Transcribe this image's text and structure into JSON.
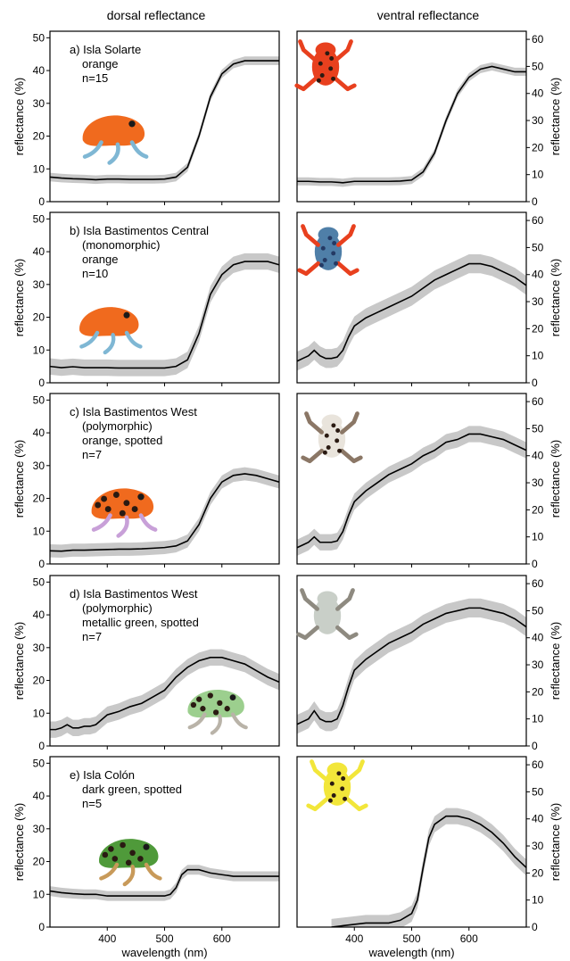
{
  "figure": {
    "column_titles": [
      "dorsal reflectance",
      "ventral reflectance"
    ]
  },
  "colors": {
    "band": "#c8c8c8",
    "line": "#000000",
    "frame": "#000000",
    "frog_orange": "#f06a1e",
    "frog_red": "#e8401e",
    "frog_spot": "#2a1a12",
    "frog_blue": "#4f7fa8",
    "frog_white": "#e9e4dc",
    "frog_green": "#9ccf8e",
    "frog_darkgreen": "#4f9a3a",
    "frog_yellow": "#f2e63a"
  },
  "chart_data": [
    {
      "type": "line",
      "panel": "a",
      "side": "dorsal",
      "text_lines": [
        "a) Isla Solarte",
        "orange",
        "n=15"
      ],
      "xlabel": "",
      "ylabel": "reflectance (%)",
      "xlim": [
        300,
        700
      ],
      "ylim": [
        0,
        52
      ],
      "yticks": [
        0,
        10,
        20,
        30,
        40,
        50
      ],
      "xticks": [
        400,
        500,
        600
      ],
      "show_xticklabels": false,
      "band": 1.3,
      "x": [
        300,
        320,
        340,
        360,
        380,
        400,
        420,
        440,
        460,
        480,
        500,
        520,
        540,
        560,
        580,
        600,
        620,
        640,
        660,
        680,
        700
      ],
      "y": [
        7.5,
        7.2,
        7.0,
        6.9,
        6.7,
        6.9,
        6.9,
        6.8,
        6.8,
        6.8,
        6.9,
        7.5,
        10.5,
        20,
        32,
        39,
        42,
        43,
        43,
        43,
        43
      ],
      "icon": "frog-orange-icon"
    },
    {
      "type": "line",
      "panel": "a",
      "side": "ventral",
      "xlabel": "",
      "ylabel": "reflectance (%)",
      "xlim": [
        300,
        700
      ],
      "ylim": [
        0,
        63
      ],
      "yticks": [
        0,
        10,
        20,
        30,
        40,
        50,
        60
      ],
      "xticks": [
        400,
        500,
        600
      ],
      "show_xticklabels": false,
      "band": 1.5,
      "x": [
        300,
        320,
        340,
        360,
        380,
        400,
        420,
        440,
        460,
        480,
        500,
        520,
        540,
        560,
        580,
        600,
        620,
        640,
        660,
        680,
        700
      ],
      "y": [
        7.5,
        7.5,
        7.3,
        7.3,
        7.0,
        7.5,
        7.5,
        7.5,
        7.5,
        7.6,
        8,
        11,
        18,
        30,
        40,
        46,
        49,
        50,
        49,
        48,
        48
      ],
      "icon": "frog-red-ventral-icon"
    },
    {
      "type": "line",
      "panel": "b",
      "side": "dorsal",
      "text_lines": [
        "b) Isla Bastimentos Central",
        "(monomorphic)",
        "orange",
        "n=10"
      ],
      "xlabel": "",
      "ylabel": "reflectance (%)",
      "xlim": [
        300,
        700
      ],
      "ylim": [
        0,
        52
      ],
      "yticks": [
        0,
        10,
        20,
        30,
        40,
        50
      ],
      "xticks": [
        400,
        500,
        600
      ],
      "show_xticklabels": false,
      "band": 2.5,
      "x": [
        300,
        320,
        340,
        360,
        380,
        400,
        420,
        440,
        460,
        480,
        500,
        520,
        540,
        560,
        580,
        600,
        620,
        640,
        660,
        680,
        700
      ],
      "y": [
        5.0,
        4.6,
        4.9,
        4.6,
        4.6,
        4.6,
        4.5,
        4.5,
        4.5,
        4.5,
        4.5,
        5.0,
        7.0,
        15,
        27,
        33,
        36,
        37,
        37,
        37,
        36
      ],
      "icon": "frog-orange-icon"
    },
    {
      "type": "line",
      "panel": "b",
      "side": "ventral",
      "xlabel": "",
      "ylabel": "reflectance (%)",
      "xlim": [
        300,
        700
      ],
      "ylim": [
        0,
        63
      ],
      "yticks": [
        0,
        10,
        20,
        30,
        40,
        50,
        60
      ],
      "xticks": [
        400,
        500,
        600
      ],
      "show_xticklabels": false,
      "band": 3.5,
      "x": [
        300,
        310,
        320,
        330,
        340,
        350,
        360,
        370,
        380,
        390,
        400,
        420,
        440,
        460,
        480,
        500,
        520,
        540,
        560,
        580,
        600,
        620,
        640,
        660,
        680,
        700
      ],
      "y": [
        8,
        9,
        10,
        12,
        10,
        9,
        9,
        9.5,
        12,
        17,
        21,
        24,
        26,
        28,
        30,
        32,
        35,
        38,
        40,
        42,
        44,
        44,
        43,
        41,
        39,
        36
      ],
      "icon": "frog-blue-ventral-icon"
    },
    {
      "type": "line",
      "panel": "c",
      "side": "dorsal",
      "text_lines": [
        "c) Isla Bastimentos West",
        "(polymorphic)",
        "orange, spotted",
        "n=7"
      ],
      "xlabel": "",
      "ylabel": "reflectance (%)",
      "xlim": [
        300,
        700
      ],
      "ylim": [
        0,
        52
      ],
      "yticks": [
        0,
        10,
        20,
        30,
        40,
        50
      ],
      "xticks": [
        400,
        500,
        600
      ],
      "show_xticklabels": false,
      "band": 2.0,
      "x": [
        300,
        320,
        340,
        360,
        380,
        400,
        420,
        440,
        460,
        480,
        500,
        520,
        540,
        560,
        580,
        600,
        620,
        640,
        660,
        680,
        700
      ],
      "y": [
        4.0,
        3.9,
        4.2,
        4.2,
        4.3,
        4.4,
        4.5,
        4.5,
        4.6,
        4.8,
        5.0,
        5.5,
        7.0,
        12,
        20,
        25,
        27,
        27.5,
        27,
        26,
        25
      ],
      "icon": "frog-orange-spotted-icon"
    },
    {
      "type": "line",
      "panel": "c",
      "side": "ventral",
      "xlabel": "",
      "ylabel": "reflectance (%)",
      "xlim": [
        300,
        700
      ],
      "ylim": [
        0,
        63
      ],
      "yticks": [
        0,
        10,
        20,
        30,
        40,
        50,
        60
      ],
      "xticks": [
        400,
        500,
        600
      ],
      "show_xticklabels": false,
      "band": 3.0,
      "x": [
        300,
        310,
        320,
        330,
        340,
        350,
        360,
        370,
        380,
        390,
        400,
        420,
        440,
        460,
        480,
        500,
        520,
        540,
        560,
        580,
        600,
        620,
        640,
        660,
        680,
        700
      ],
      "y": [
        6,
        7,
        8,
        10,
        8,
        8,
        8,
        8.5,
        12,
        18,
        23,
        27,
        30,
        33,
        35,
        37,
        40,
        42,
        45,
        46,
        48,
        48,
        47,
        46,
        44,
        42
      ],
      "icon": "frog-white-ventral-icon"
    },
    {
      "type": "line",
      "panel": "d",
      "side": "dorsal",
      "text_lines": [
        "d) Isla Bastimentos West",
        "(polymorphic)",
        "metallic green, spotted",
        "n=7"
      ],
      "xlabel": "",
      "ylabel": "reflectance (%)",
      "xlim": [
        300,
        700
      ],
      "ylim": [
        0,
        52
      ],
      "yticks": [
        0,
        10,
        20,
        30,
        40,
        50
      ],
      "xticks": [
        400,
        500,
        600
      ],
      "show_xticklabels": false,
      "band": 2.5,
      "x": [
        300,
        310,
        320,
        330,
        340,
        350,
        360,
        370,
        380,
        390,
        400,
        420,
        440,
        460,
        480,
        500,
        520,
        540,
        560,
        580,
        600,
        620,
        640,
        660,
        680,
        700
      ],
      "y": [
        5,
        5,
        5.5,
        6.5,
        5.5,
        5.5,
        6,
        6,
        6.5,
        8,
        9.5,
        10.5,
        12,
        13,
        15,
        17,
        21,
        24,
        26,
        27,
        27,
        26,
        25,
        23,
        21,
        19.5
      ],
      "icon": "frog-green-spotted-icon"
    },
    {
      "type": "line",
      "panel": "d",
      "side": "ventral",
      "xlabel": "",
      "ylabel": "reflectance (%)",
      "xlim": [
        300,
        700
      ],
      "ylim": [
        0,
        63
      ],
      "yticks": [
        0,
        10,
        20,
        30,
        40,
        50,
        60
      ],
      "xticks": [
        400,
        500,
        600
      ],
      "show_xticklabels": false,
      "band": 3.5,
      "x": [
        300,
        310,
        320,
        330,
        340,
        350,
        360,
        370,
        380,
        390,
        400,
        420,
        440,
        460,
        480,
        500,
        520,
        540,
        560,
        580,
        600,
        620,
        640,
        660,
        680,
        700
      ],
      "y": [
        8,
        9,
        10,
        13,
        10,
        9,
        9,
        10,
        15,
        22,
        28,
        32,
        35,
        38,
        40,
        42,
        45,
        47,
        49,
        50,
        51,
        51,
        50,
        49,
        47,
        44
      ],
      "icon": "frog-grey-ventral-icon"
    },
    {
      "type": "line",
      "panel": "e",
      "side": "dorsal",
      "text_lines": [
        "e) Isla Colón",
        "dark green, spotted",
        "n=5"
      ],
      "xlabel": "wavelength (nm)",
      "ylabel": "reflectance (%)",
      "xlim": [
        300,
        700
      ],
      "ylim": [
        0,
        52
      ],
      "yticks": [
        0,
        10,
        20,
        30,
        40,
        50
      ],
      "xticks": [
        400,
        500,
        600
      ],
      "show_xticklabels": true,
      "band": 1.5,
      "x": [
        300,
        320,
        340,
        360,
        380,
        400,
        420,
        440,
        460,
        480,
        500,
        510,
        520,
        530,
        540,
        560,
        580,
        600,
        620,
        640,
        660,
        680,
        700
      ],
      "y": [
        11,
        10.5,
        10.2,
        10,
        10,
        9.5,
        9.5,
        9.5,
        9.5,
        9.5,
        9.5,
        10,
        12,
        16,
        17.5,
        17.5,
        16.5,
        16,
        15.5,
        15.5,
        15.5,
        15.5,
        15.5
      ],
      "icon": "frog-darkgreen-spotted-icon"
    },
    {
      "type": "line",
      "panel": "e",
      "side": "ventral",
      "xlabel": "wavelength (nm)",
      "ylabel": "reflectance (%)",
      "xlim": [
        300,
        700
      ],
      "ylim": [
        0,
        63
      ],
      "yticks": [
        0,
        10,
        20,
        30,
        40,
        50,
        60
      ],
      "xticks": [
        400,
        500,
        600
      ],
      "show_xticklabels": true,
      "band": 3.0,
      "x": [
        360,
        380,
        400,
        420,
        440,
        460,
        480,
        500,
        510,
        520,
        530,
        540,
        560,
        580,
        600,
        620,
        640,
        660,
        680,
        700
      ],
      "y": [
        0,
        0.5,
        1,
        1.5,
        1.5,
        1.5,
        2.5,
        5,
        10,
        22,
        33,
        38,
        41,
        41,
        40,
        38,
        35,
        31,
        26,
        22
      ],
      "icon": "frog-yellow-ventral-icon"
    }
  ]
}
